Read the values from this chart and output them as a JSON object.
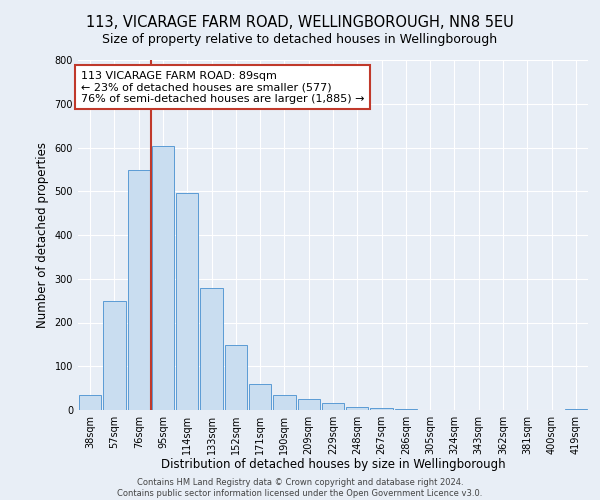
{
  "title": "113, VICARAGE FARM ROAD, WELLINGBOROUGH, NN8 5EU",
  "subtitle": "Size of property relative to detached houses in Wellingborough",
  "xlabel": "Distribution of detached houses by size in Wellingborough",
  "ylabel": "Number of detached properties",
  "bar_labels": [
    "38sqm",
    "57sqm",
    "76sqm",
    "95sqm",
    "114sqm",
    "133sqm",
    "152sqm",
    "171sqm",
    "190sqm",
    "209sqm",
    "229sqm",
    "248sqm",
    "267sqm",
    "286sqm",
    "305sqm",
    "324sqm",
    "343sqm",
    "362sqm",
    "381sqm",
    "400sqm",
    "419sqm"
  ],
  "bar_values": [
    35,
    250,
    548,
    603,
    495,
    278,
    148,
    60,
    35,
    25,
    15,
    8,
    5,
    2,
    1,
    1,
    1,
    0,
    0,
    0,
    2
  ],
  "bar_color": "#c9ddf0",
  "bar_edge_color": "#5b9bd5",
  "vline_color": "#c0392b",
  "ylim": [
    0,
    800
  ],
  "yticks": [
    0,
    100,
    200,
    300,
    400,
    500,
    600,
    700,
    800
  ],
  "annotation_line1": "113 VICARAGE FARM ROAD: 89sqm",
  "annotation_line2": "← 23% of detached houses are smaller (577)",
  "annotation_line3": "76% of semi-detached houses are larger (1,885) →",
  "annotation_box_color": "#ffffff",
  "annotation_box_edge": "#c0392b",
  "footer": "Contains HM Land Registry data © Crown copyright and database right 2024.\nContains public sector information licensed under the Open Government Licence v3.0.",
  "bg_color": "#e8eef6",
  "title_fontsize": 10.5,
  "subtitle_fontsize": 9,
  "tick_label_fontsize": 7,
  "axis_label_fontsize": 8.5,
  "annotation_fontsize": 8
}
